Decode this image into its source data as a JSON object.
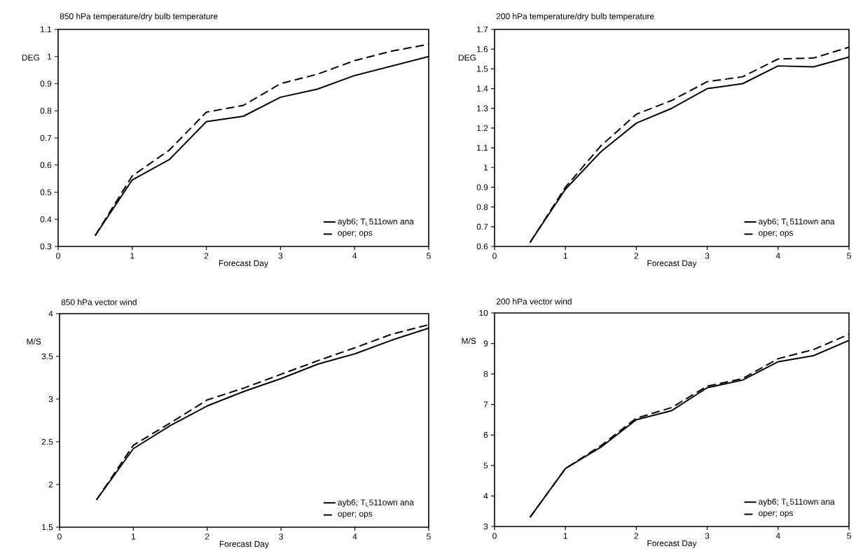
{
  "chart_data": [
    {
      "type": "line",
      "title": "850 hPa temperature/dry bulb temperature",
      "xlabel": "Forecast Day",
      "ylabel": "DEG",
      "x": [
        0.5,
        1,
        1.5,
        2,
        2.5,
        3,
        3.5,
        4,
        4.5,
        5
      ],
      "xlim": [
        0,
        5
      ],
      "ylim": [
        0.3,
        1.1
      ],
      "xticks": [
        0,
        1,
        2,
        3,
        4,
        5
      ],
      "yticks": [
        0.3,
        0.4,
        0.5,
        0.6,
        0.7,
        0.8,
        0.9,
        1,
        1.1
      ],
      "legend": "bottom right",
      "series": [
        {
          "name": "ayb6; T$_{L}$511own ana",
          "color": "#000000",
          "line_style": "solid",
          "values": [
            0.34,
            0.545,
            0.62,
            0.76,
            0.78,
            0.85,
            0.88,
            0.93,
            0.965,
            1.0
          ]
        },
        {
          "name": "oper; ops",
          "color": "#000000",
          "line_style": "dashed",
          "values": [
            0.34,
            0.56,
            0.655,
            0.795,
            0.82,
            0.9,
            0.935,
            0.985,
            1.02,
            1.045
          ]
        }
      ]
    },
    {
      "type": "line",
      "title": "200 hPa temperature/dry bulb temperature",
      "xlabel": "Forecast Day",
      "ylabel": "DEG",
      "x": [
        0.5,
        1,
        1.5,
        2,
        2.5,
        3,
        3.5,
        4,
        4.5,
        5
      ],
      "xlim": [
        0,
        5
      ],
      "ylim": [
        0.6,
        1.7
      ],
      "xticks": [
        0,
        1,
        2,
        3,
        4,
        5
      ],
      "yticks": [
        0.6,
        0.7,
        0.8,
        0.9,
        1,
        1.1,
        1.2,
        1.3,
        1.4,
        1.5,
        1.6,
        1.7
      ],
      "legend": "bottom right",
      "series": [
        {
          "name": "ayb6; T$_{L}$511own ana",
          "color": "#000000",
          "line_style": "solid",
          "values": [
            0.62,
            0.89,
            1.08,
            1.225,
            1.3,
            1.4,
            1.425,
            1.515,
            1.51,
            1.56
          ]
        },
        {
          "name": "oper; ops",
          "color": "#000000",
          "line_style": "dashed",
          "values": [
            0.62,
            0.9,
            1.11,
            1.27,
            1.34,
            1.435,
            1.46,
            1.55,
            1.555,
            1.61
          ]
        }
      ]
    },
    {
      "type": "line",
      "title": "850 hPa vector wind",
      "xlabel": "Forecast Day",
      "ylabel": "M/S",
      "x": [
        0.5,
        1,
        1.5,
        2,
        2.5,
        3,
        3.5,
        4,
        4.5,
        5
      ],
      "xlim": [
        0,
        5
      ],
      "ylim": [
        1.5,
        4
      ],
      "xticks": [
        0,
        1,
        2,
        3,
        4,
        5
      ],
      "yticks": [
        1.5,
        2,
        2.5,
        3,
        3.5,
        4
      ],
      "legend": "bottom right",
      "series": [
        {
          "name": "ayb6; T$_{L}$511own ana",
          "color": "#000000",
          "line_style": "solid",
          "values": [
            1.82,
            2.42,
            2.69,
            2.92,
            3.09,
            3.24,
            3.41,
            3.53,
            3.69,
            3.83
          ]
        },
        {
          "name": "oper; ops",
          "color": "#000000",
          "line_style": "dashed",
          "values": [
            1.82,
            2.46,
            2.72,
            2.99,
            3.13,
            3.29,
            3.45,
            3.6,
            3.76,
            3.87
          ]
        }
      ]
    },
    {
      "type": "line",
      "title": "200 hPa vector wind",
      "xlabel": "Forecast Day",
      "ylabel": "M/S",
      "x": [
        0.5,
        1,
        1.5,
        2,
        2.5,
        3,
        3.5,
        4,
        4.5,
        5
      ],
      "xlim": [
        0,
        5
      ],
      "ylim": [
        3,
        10
      ],
      "xticks": [
        0,
        1,
        2,
        3,
        4,
        5
      ],
      "yticks": [
        3,
        4,
        5,
        6,
        7,
        8,
        9,
        10
      ],
      "legend": "bottom right",
      "series": [
        {
          "name": "ayb6; T$_{L}$511own ana",
          "color": "#000000",
          "line_style": "solid",
          "values": [
            3.3,
            4.9,
            5.6,
            6.5,
            6.8,
            7.55,
            7.8,
            8.4,
            8.6,
            9.1
          ]
        },
        {
          "name": "oper; ops",
          "color": "#000000",
          "line_style": "dashed",
          "values": [
            3.3,
            4.9,
            5.65,
            6.55,
            6.9,
            7.6,
            7.85,
            8.5,
            8.8,
            9.3
          ]
        }
      ]
    }
  ]
}
